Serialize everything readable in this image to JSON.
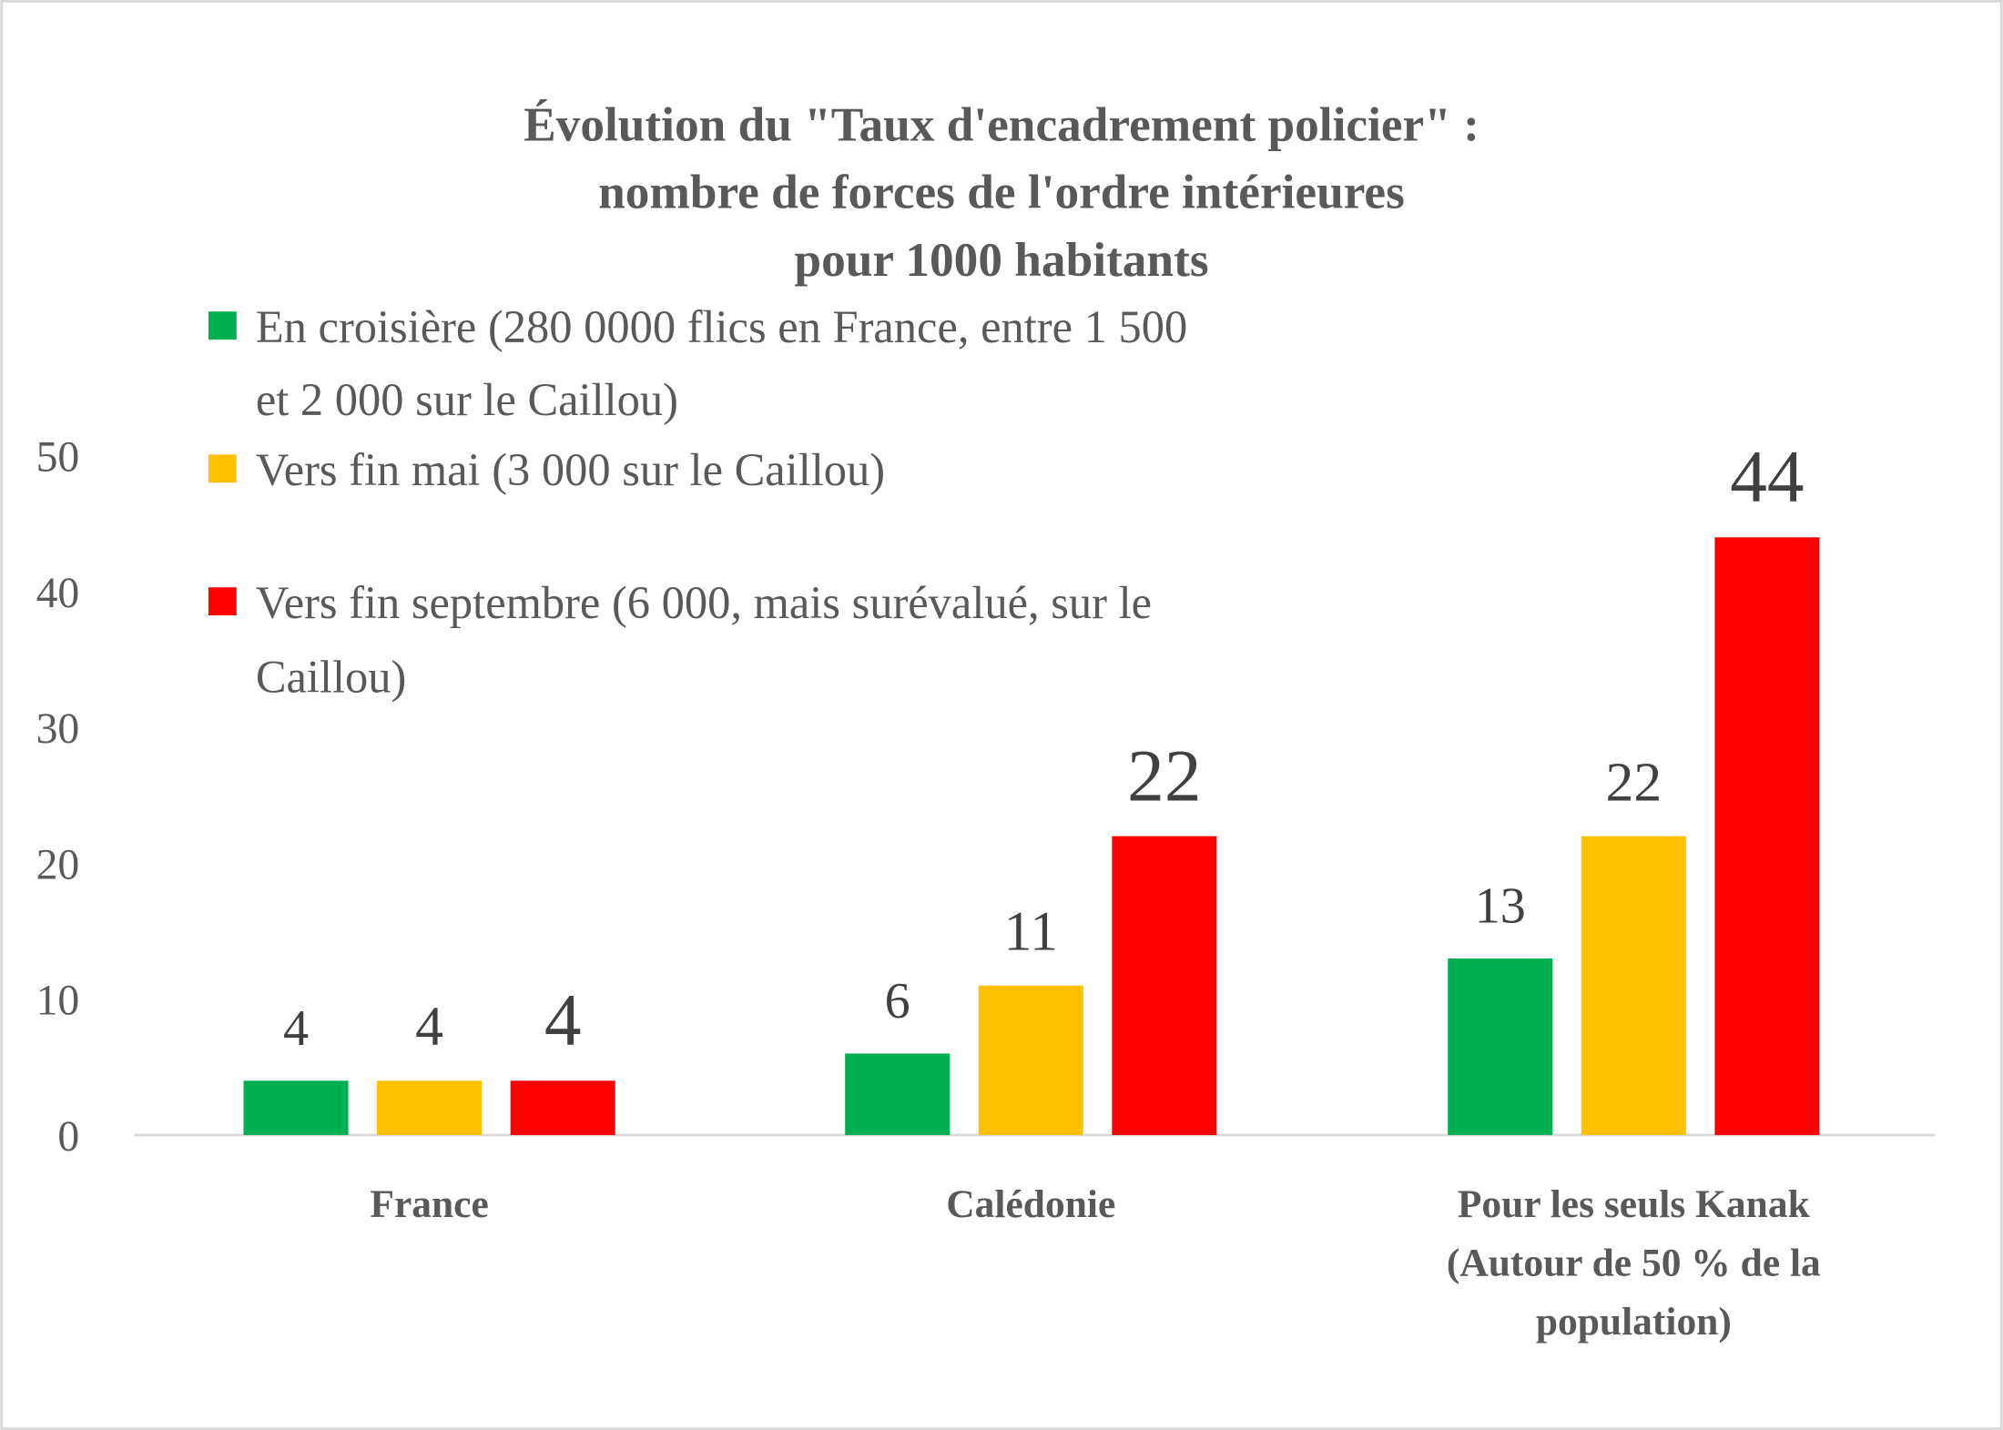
{
  "chart_data": {
    "type": "bar",
    "title": [
      "Évolution du \"Taux d'encadrement policier\" :",
      "nombre de forces de l'ordre intérieures",
      "pour 1000 habitants"
    ],
    "categories": [
      [
        "France"
      ],
      [
        "Calédonie"
      ],
      [
        "Pour les seuls Kanak",
        "(Autour de 50 % de la",
        "population)"
      ]
    ],
    "series": [
      {
        "name": [
          "En croisière (280 0000 flics en France, entre 1 500",
          "et 2 000 sur le Caillou)"
        ],
        "color": "#00B050",
        "values": [
          4,
          6,
          13
        ]
      },
      {
        "name": [
          "Vers fin mai (3 000 sur le Caillou)"
        ],
        "color": "#FFC000",
        "values": [
          4,
          11,
          22
        ]
      },
      {
        "name": [
          "Vers fin septembre (6 000, mais surévalué, sur le",
          "Caillou)"
        ],
        "color": "#FF0000",
        "values": [
          4,
          22,
          44
        ]
      }
    ],
    "ylim": [
      0,
      50
    ],
    "yticks": [
      "0",
      "10",
      "20",
      "30",
      "40",
      "50"
    ],
    "grid": false,
    "legend": "top",
    "xlabel": "",
    "ylabel": ""
  }
}
